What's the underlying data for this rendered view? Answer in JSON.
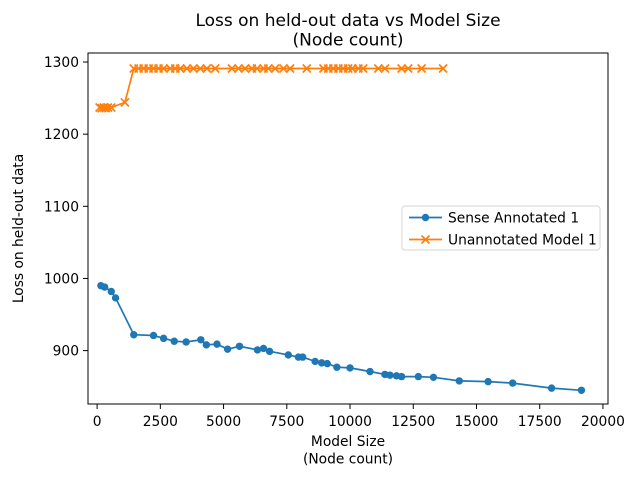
{
  "chart_data": {
    "type": "line",
    "title": "Loss on held-out data vs Model Size",
    "subtitle": "(Node count)",
    "xlabel_line1": "Model Size",
    "xlabel_line2": "(Node count)",
    "ylabel": "Loss on held-out data",
    "xlim": [
      -360,
      20200
    ],
    "ylim": [
      826,
      1312.5
    ],
    "xticks": [
      0,
      2500,
      5000,
      7500,
      10000,
      12500,
      15000,
      17500,
      20000
    ],
    "yticks": [
      900,
      1000,
      1100,
      1200,
      1300
    ],
    "grid": false,
    "legend_position": "center right",
    "background": "#ffffff",
    "series": [
      {
        "name": "Sense Annotated 1",
        "color": "#1f77b4",
        "marker": "circle",
        "points": [
          [
            150,
            990
          ],
          [
            300,
            988
          ],
          [
            560,
            982
          ],
          [
            730,
            973
          ],
          [
            1450,
            922
          ],
          [
            2230,
            921
          ],
          [
            2630,
            917
          ],
          [
            3050,
            913
          ],
          [
            3520,
            912
          ],
          [
            4100,
            915
          ],
          [
            4320,
            908
          ],
          [
            4740,
            909
          ],
          [
            5160,
            902
          ],
          [
            5630,
            906
          ],
          [
            6340,
            901
          ],
          [
            6580,
            903
          ],
          [
            6820,
            899
          ],
          [
            7560,
            894
          ],
          [
            7960,
            891
          ],
          [
            8130,
            891
          ],
          [
            8620,
            885
          ],
          [
            8880,
            883
          ],
          [
            9100,
            882
          ],
          [
            9480,
            877
          ],
          [
            10000,
            876
          ],
          [
            10790,
            871
          ],
          [
            11380,
            867
          ],
          [
            11580,
            866
          ],
          [
            11840,
            865
          ],
          [
            12040,
            864
          ],
          [
            12700,
            864
          ],
          [
            13300,
            863
          ],
          [
            14320,
            858
          ],
          [
            15460,
            857
          ],
          [
            16430,
            855
          ],
          [
            17970,
            848
          ],
          [
            19150,
            845
          ]
        ]
      },
      {
        "name": "Unannotated Model 1",
        "color": "#ff7f0e",
        "marker": "x",
        "points": [
          [
            100,
            1237
          ],
          [
            180,
            1236
          ],
          [
            260,
            1237
          ],
          [
            340,
            1236
          ],
          [
            430,
            1237
          ],
          [
            560,
            1237
          ],
          [
            1100,
            1244
          ],
          [
            1450,
            1291
          ],
          [
            1640,
            1291
          ],
          [
            1840,
            1291
          ],
          [
            2040,
            1291
          ],
          [
            2230,
            1291
          ],
          [
            2430,
            1291
          ],
          [
            2630,
            1291
          ],
          [
            2890,
            1291
          ],
          [
            3090,
            1291
          ],
          [
            3290,
            1291
          ],
          [
            3550,
            1291
          ],
          [
            3810,
            1291
          ],
          [
            4080,
            1291
          ],
          [
            4340,
            1291
          ],
          [
            4670,
            1291
          ],
          [
            5330,
            1291
          ],
          [
            5590,
            1291
          ],
          [
            5850,
            1291
          ],
          [
            6120,
            1291
          ],
          [
            6320,
            1291
          ],
          [
            6580,
            1291
          ],
          [
            6770,
            1291
          ],
          [
            7040,
            1291
          ],
          [
            7370,
            1291
          ],
          [
            7630,
            1291
          ],
          [
            8290,
            1291
          ],
          [
            8950,
            1291
          ],
          [
            9140,
            1291
          ],
          [
            9340,
            1291
          ],
          [
            9540,
            1291
          ],
          [
            9730,
            1291
          ],
          [
            9930,
            1291
          ],
          [
            10090,
            1291
          ],
          [
            10330,
            1291
          ],
          [
            10520,
            1291
          ],
          [
            11120,
            1291
          ],
          [
            11380,
            1291
          ],
          [
            12040,
            1291
          ],
          [
            12300,
            1291
          ],
          [
            12830,
            1291
          ],
          [
            13680,
            1291
          ]
        ]
      }
    ]
  }
}
